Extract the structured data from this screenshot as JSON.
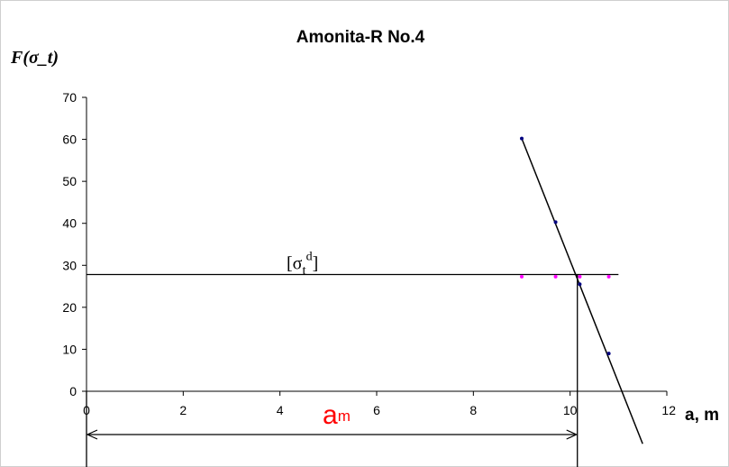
{
  "chart_data": {
    "type": "scatter",
    "title": "Amonita-R No.4",
    "xlabel": "a, m",
    "ylabel": "F(σ_t)",
    "xlim": [
      0,
      12
    ],
    "ylim": [
      0,
      70
    ],
    "x_ticks": [
      "0",
      "2",
      "4",
      "6",
      "8",
      "10",
      "12"
    ],
    "y_ticks": [
      "0",
      "10",
      "20",
      "30",
      "40",
      "50",
      "60",
      "70"
    ],
    "grid": false,
    "legend": "none",
    "series": [
      {
        "points": [
          [
            9.0,
            60.2
          ],
          [
            9.7,
            40.3
          ],
          [
            10.2,
            25.5
          ],
          [
            10.8,
            9.0
          ]
        ],
        "color": "#000080",
        "fit_line": {
          "x": [
            9.0,
            11.5
          ],
          "y": [
            60.2,
            -12.5
          ]
        }
      },
      {
        "points": [
          [
            9.0,
            27.3
          ],
          [
            9.7,
            27.3
          ],
          [
            10.2,
            27.3
          ],
          [
            10.8,
            27.3
          ]
        ],
        "color": "#ff00ff"
      }
    ],
    "threshold": {
      "y": 27.8,
      "x_from": 0,
      "x_to": 11.0,
      "label_main": "σ",
      "label_sub": "t",
      "label_sup": "d"
    },
    "intersection_x": 10.15,
    "dimension": {
      "label_main": "a",
      "label_sub": "m",
      "color": "#ff0000"
    }
  }
}
